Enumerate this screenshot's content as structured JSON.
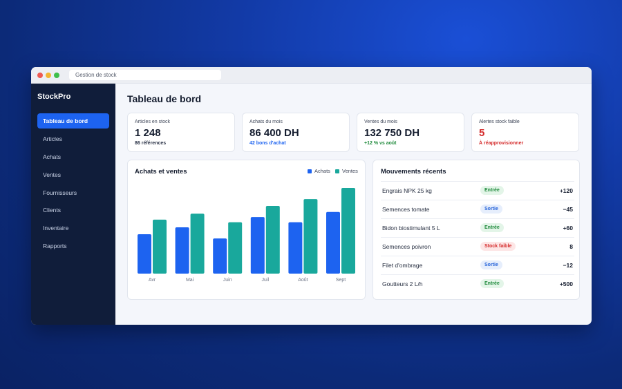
{
  "window": {
    "url": "Gestion de stock"
  },
  "sidebar": {
    "brand": "StockPro",
    "items": [
      {
        "label": "Tableau de bord",
        "active": true
      },
      {
        "label": "Articles"
      },
      {
        "label": "Achats"
      },
      {
        "label": "Ventes"
      },
      {
        "label": "Fournisseurs"
      },
      {
        "label": "Clients"
      },
      {
        "label": "Inventaire"
      },
      {
        "label": "Rapports"
      }
    ]
  },
  "main": {
    "title": "Tableau de bord",
    "kpis": [
      {
        "label": "Articles en stock",
        "value": "1 248",
        "sub": "86 références",
        "sub_color": "#2b3347",
        "value_color": "#141c2e"
      },
      {
        "label": "Achats du mois",
        "value": "86 400 DH",
        "sub": "42 bons d'achat",
        "sub_color": "#1d63f0",
        "value_color": "#141c2e"
      },
      {
        "label": "Ventes du mois",
        "value": "132 750 DH",
        "sub": "+12 % vs août",
        "sub_color": "#1f8a3c",
        "value_color": "#141c2e"
      },
      {
        "label": "Alertes stock faible",
        "value": "5",
        "sub": "À réapprovisionner",
        "sub_color": "#d42a2a",
        "value_color": "#d42a2a"
      }
    ],
    "chart_panel": {
      "title": "Achats et ventes",
      "legend": [
        {
          "name": "Achats",
          "color": "#1d63f0"
        },
        {
          "name": "Ventes",
          "color": "#19a89c"
        }
      ]
    },
    "movements": {
      "title": "Mouvements récents",
      "rows": [
        {
          "name": "Engrais NPK 25 kg",
          "badge": "Entrée",
          "type": "green",
          "qty": "+120"
        },
        {
          "name": "Semences tomate",
          "badge": "Sortie",
          "type": "blue",
          "qty": "−45"
        },
        {
          "name": "Bidon biostimulant 5 L",
          "badge": "Entrée",
          "type": "green",
          "qty": "+60"
        },
        {
          "name": "Semences poivron",
          "badge": "Stock faible",
          "type": "red",
          "qty": "8"
        },
        {
          "name": "Filet d'ombrage",
          "badge": "Sortie",
          "type": "blue",
          "qty": "−12"
        },
        {
          "name": "Goutteurs 2 L/h",
          "badge": "Entrée",
          "type": "green",
          "qty": "+500"
        }
      ]
    }
  },
  "chart_data": {
    "type": "bar",
    "categories": [
      "Avr",
      "Mai",
      "Juin",
      "Juil",
      "Août",
      "Sept"
    ],
    "series": [
      {
        "name": "Achats",
        "color": "#1d63f0",
        "values": [
          46,
          54,
          41,
          66,
          60,
          72
        ]
      },
      {
        "name": "Ventes",
        "color": "#19a89c",
        "values": [
          63,
          70,
          60,
          79,
          87,
          100
        ]
      }
    ],
    "ylim": [
      0,
      100
    ],
    "grid": false,
    "legend_position": "top-right"
  }
}
